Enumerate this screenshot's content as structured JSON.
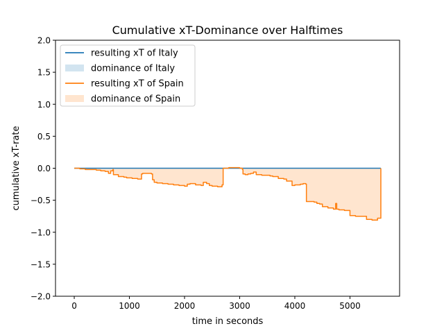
{
  "chart_data": {
    "type": "line",
    "title": "Cumulative xT-Dominance over Halftimes",
    "xlabel": "time in seconds",
    "ylabel": "cumulative xT-rate",
    "xlim": [
      -340,
      5900
    ],
    "ylim": [
      -2.0,
      2.0
    ],
    "x_ticks": [
      0,
      1000,
      2000,
      3000,
      4000,
      5000
    ],
    "x_tick_labels": [
      "0",
      "1000",
      "2000",
      "3000",
      "4000",
      "5000"
    ],
    "y_ticks": [
      -2.0,
      -1.5,
      -1.0,
      -0.5,
      0.0,
      0.5,
      1.0,
      1.5,
      2.0
    ],
    "y_tick_labels": [
      "−2.0",
      "−1.5",
      "−1.0",
      "−0.5",
      "0.0",
      "0.5",
      "1.0",
      "1.5",
      "2.0"
    ],
    "grid": false,
    "legend_position": "top-left",
    "legend": [
      {
        "label": "resulting xT of Italy",
        "kind": "line",
        "color": "#1f77b4"
      },
      {
        "label": "dominance of Italy",
        "kind": "patch",
        "color": "#1f77b4"
      },
      {
        "label": "resulting xT of Spain",
        "kind": "line",
        "color": "#ff7f0e"
      },
      {
        "label": "dominance of Spain",
        "kind": "patch",
        "color": "#ff7f0e"
      }
    ],
    "series": [
      {
        "name": "resulting xT of Italy",
        "color": "#1f77b4",
        "x": [
          0,
          5560
        ],
        "y": [
          0.0,
          0.0
        ]
      },
      {
        "name": "resulting xT of Spain",
        "color": "#ff7f0e",
        "x": [
          0,
          100,
          200,
          300,
          400,
          480,
          560,
          620,
          660,
          700,
          710,
          800,
          900,
          950,
          1050,
          1150,
          1200,
          1220,
          1240,
          1400,
          1420,
          1450,
          1500,
          1600,
          1700,
          1800,
          1900,
          2000,
          2050,
          2100,
          2200,
          2300,
          2340,
          2400,
          2450,
          2500,
          2550,
          2600,
          2650,
          2680,
          2700,
          2710,
          2800,
          2900,
          3000,
          3050,
          3060,
          3100,
          3150,
          3200,
          3250,
          3300,
          3400,
          3500,
          3550,
          3600,
          3700,
          3800,
          3850,
          3900,
          3950,
          4000,
          4100,
          4150,
          4200,
          4210,
          4250,
          4350,
          4400,
          4450,
          4500,
          4600,
          4700,
          4740,
          4760,
          4800,
          4900,
          5000,
          5100,
          5200,
          5300,
          5400,
          5500,
          5560,
          5560
        ],
        "y": [
          0.0,
          -0.01,
          -0.02,
          -0.02,
          -0.03,
          -0.04,
          -0.05,
          -0.08,
          -0.04,
          -0.02,
          -0.1,
          -0.13,
          -0.14,
          -0.15,
          -0.16,
          -0.17,
          -0.17,
          -0.09,
          -0.08,
          -0.09,
          -0.18,
          -0.22,
          -0.23,
          -0.24,
          -0.25,
          -0.26,
          -0.27,
          -0.28,
          -0.25,
          -0.24,
          -0.26,
          -0.27,
          -0.22,
          -0.24,
          -0.27,
          -0.28,
          -0.28,
          -0.29,
          -0.29,
          -0.26,
          0.0,
          0.0,
          0.01,
          0.01,
          0.0,
          -0.02,
          -0.09,
          -0.1,
          -0.09,
          -0.08,
          -0.06,
          -0.1,
          -0.11,
          -0.11,
          -0.12,
          -0.13,
          -0.16,
          -0.17,
          -0.2,
          -0.2,
          -0.27,
          -0.26,
          -0.25,
          -0.24,
          -0.25,
          -0.52,
          -0.52,
          -0.53,
          -0.55,
          -0.56,
          -0.6,
          -0.62,
          -0.64,
          -0.55,
          -0.64,
          -0.65,
          -0.66,
          -0.74,
          -0.75,
          -0.75,
          -0.8,
          -0.81,
          -0.78,
          -0.78,
          0.0
        ]
      }
    ]
  }
}
